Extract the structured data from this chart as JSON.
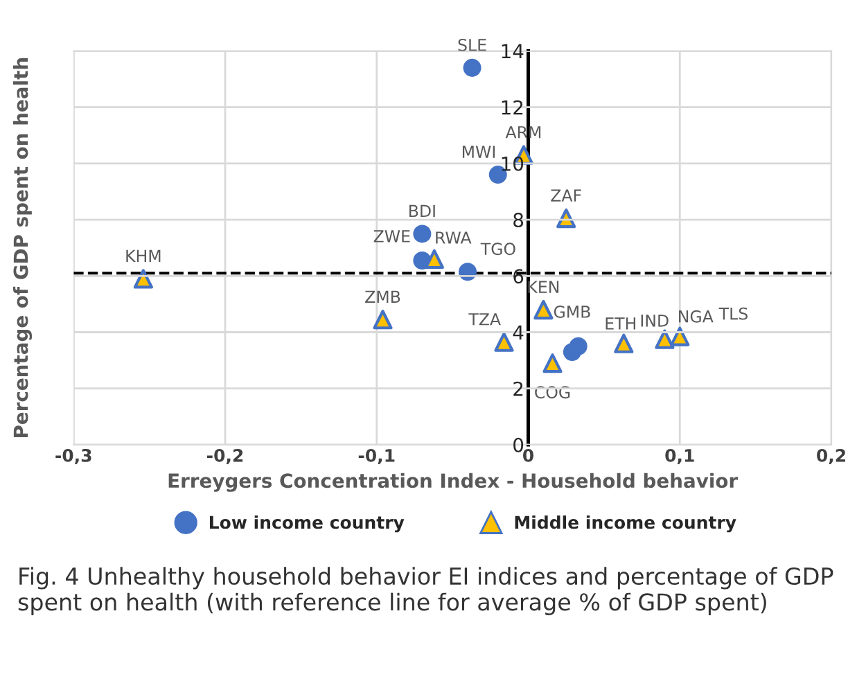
{
  "chart_data": {
    "type": "scatter",
    "xlabel": "Erreygers Concentration Index - Household behavior",
    "ylabel": "Percentage of GDP spent on health",
    "xlim": [
      -0.3,
      0.2
    ],
    "xticks": [
      {
        "value": -0.3,
        "label": "-0,3"
      },
      {
        "value": -0.2,
        "label": "-0,2"
      },
      {
        "value": -0.1,
        "label": "-0,1"
      },
      0,
      {
        "value": 0.1,
        "label": "0,1"
      },
      {
        "value": 0.2,
        "label": "0,2"
      }
    ],
    "ylim": [
      0,
      14
    ],
    "yticks": [
      0,
      2,
      4,
      6,
      8,
      10,
      12,
      14
    ],
    "grid": true,
    "legend": "bottom",
    "series": [
      {
        "name": "Low income country",
        "color": "#4472c4",
        "marker": "circle",
        "x": [
          -0.037,
          -0.02,
          -0.07,
          -0.07,
          -0.04,
          0.029,
          0.033
        ],
        "values": [
          13.4,
          9.6,
          7.5,
          6.55,
          6.15,
          3.3,
          3.5
        ]
      },
      {
        "name": "Middle income country",
        "color": "#ffc000",
        "marker": "triangle",
        "x": [
          -0.254,
          -0.096,
          -0.062,
          -0.003,
          0.025,
          0.01,
          -0.016,
          0.016,
          0.063,
          0.09,
          0.1
        ],
        "values": [
          5.9,
          4.45,
          6.6,
          10.3,
          8.05,
          4.8,
          3.65,
          2.9,
          3.6,
          3.75,
          3.85
        ]
      }
    ],
    "ref_lines": [
      {
        "axis": "y",
        "value": 6.1,
        "color": "#000000",
        "line_style": "dashed"
      }
    ],
    "annotations": [
      {
        "text": "SLE",
        "x": -0.037,
        "y": 13.4
      },
      {
        "text": "MWI",
        "x": -0.02,
        "y": 9.6
      },
      {
        "text": "BDI",
        "x": -0.07,
        "y": 7.5
      },
      {
        "text": "RWA",
        "x": -0.07,
        "y": 6.55
      },
      {
        "text": "TGO",
        "x": -0.04,
        "y": 6.15
      },
      {
        "text": "GMB",
        "x": 0.029,
        "y": 3.3
      },
      {
        "text": "ETH",
        "x": 0.033,
        "y": 3.5
      },
      {
        "text": "KHM",
        "x": -0.254,
        "y": 5.9
      },
      {
        "text": "ZMB",
        "x": -0.096,
        "y": 4.45
      },
      {
        "text": "ZWE",
        "x": -0.062,
        "y": 6.6
      },
      {
        "text": "ARM",
        "x": -0.003,
        "y": 10.3
      },
      {
        "text": "ZAF",
        "x": 0.025,
        "y": 8.05
      },
      {
        "text": "KEN",
        "x": 0.01,
        "y": 4.8
      },
      {
        "text": "TZA",
        "x": -0.016,
        "y": 3.65
      },
      {
        "text": "COG",
        "x": 0.016,
        "y": 2.9
      },
      {
        "text": "IND",
        "x": 0.063,
        "y": 3.6
      },
      {
        "text": "NGA",
        "x": 0.09,
        "y": 3.75
      },
      {
        "text": "TLS",
        "x": 0.1,
        "y": 3.85
      },
      "Fig. 4 Unhealthy household behavior EI indices and percentage of GDP spent on health (with reference line for average % of GDP spent)"
    ]
  }
}
